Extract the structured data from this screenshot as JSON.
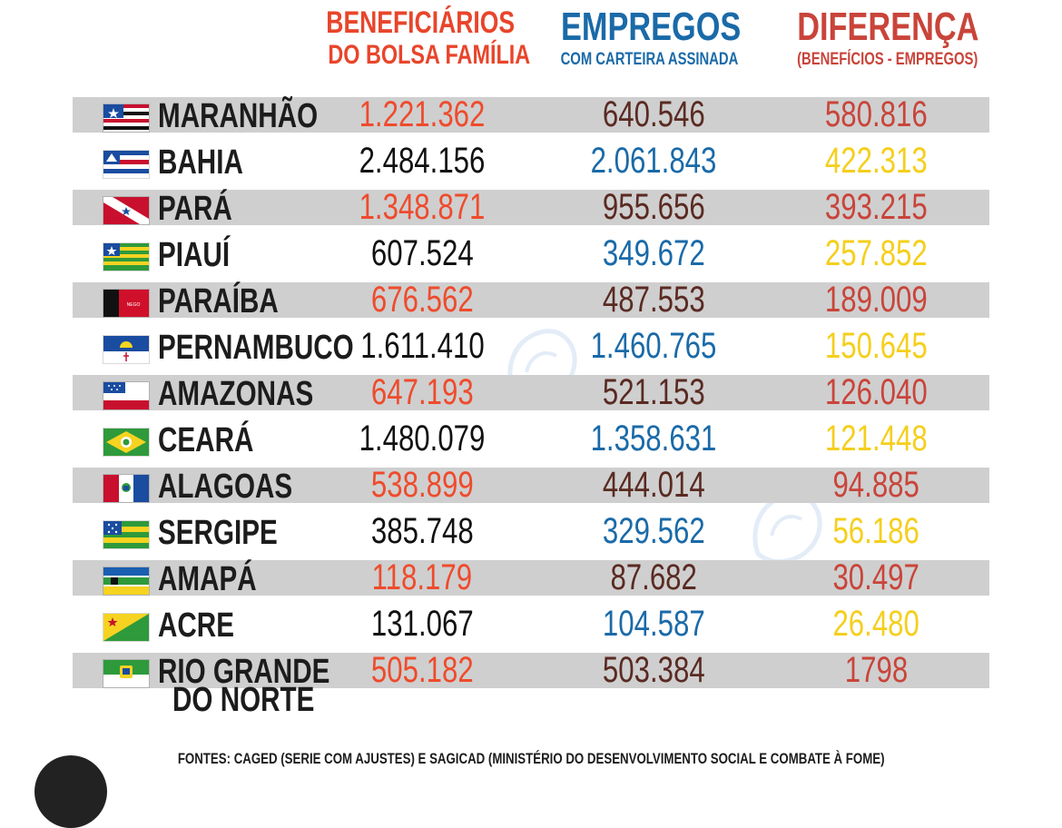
{
  "headers": {
    "beneficiarios_line1": "BENEFICIÁRIOS",
    "beneficiarios_line2": "DO BOLSA FAMÍLIA",
    "empregos_title": "EMPREGOS",
    "empregos_sub": "COM CARTEIRA ASSINADA",
    "diferenca_title": "DIFERENÇA",
    "diferenca_sub": "(BENEFÍCIOS - EMPREGOS)"
  },
  "colors": {
    "benef_header": "#e8452b",
    "empr_header": "#1a6aa8",
    "dif_header": "#c9443a",
    "benef_red": "#ef4b2c",
    "benef_black": "#111111",
    "empr_brown": "#5a2a22",
    "empr_blue": "#1a6aa8",
    "dif_red": "#c9443a",
    "dif_yellow": "#f5cf1d",
    "band_gray": "#cfcfcf"
  },
  "chart_data": {
    "type": "table",
    "columns": [
      "BENEFICIÁRIOS DO BOLSA FAMÍLIA",
      "EMPREGOS COM CARTEIRA ASSINADA",
      "DIFERENÇA (BENEFÍCIOS - EMPREGOS)"
    ],
    "rows": [
      {
        "state": "MARANHÃO",
        "flag": "maranhao-flag-icon",
        "beneficiarios": "1.221.362",
        "empregos": "640.546",
        "diferenca": "580.816",
        "banded": true
      },
      {
        "state": "BAHIA",
        "flag": "bahia-flag-icon",
        "beneficiarios": "2.484.156",
        "empregos": "2.061.843",
        "diferenca": "422.313",
        "banded": false
      },
      {
        "state": "PARÁ",
        "flag": "para-flag-icon",
        "beneficiarios": "1.348.871",
        "empregos": "955.656",
        "diferenca": "393.215",
        "banded": true
      },
      {
        "state": "PIAUÍ",
        "flag": "piaui-flag-icon",
        "beneficiarios": "607.524",
        "empregos": "349.672",
        "diferenca": "257.852",
        "banded": false
      },
      {
        "state": "PARAÍBA",
        "flag": "paraiba-flag-icon",
        "beneficiarios": "676.562",
        "empregos": "487.553",
        "diferenca": "189.009",
        "banded": true
      },
      {
        "state": "PERNAMBUCO",
        "flag": "pernambuco-flag-icon",
        "beneficiarios": "1.611.410",
        "empregos": "1.460.765",
        "diferenca": "150.645",
        "banded": false
      },
      {
        "state": "AMAZONAS",
        "flag": "amazonas-flag-icon",
        "beneficiarios": "647.193",
        "empregos": "521.153",
        "diferenca": "126.040",
        "banded": true
      },
      {
        "state": "CEARÁ",
        "flag": "ceara-flag-icon",
        "beneficiarios": "1.480.079",
        "empregos": "1.358.631",
        "diferenca": "121.448",
        "banded": false
      },
      {
        "state": "ALAGOAS",
        "flag": "alagoas-flag-icon",
        "beneficiarios": "538.899",
        "empregos": "444.014",
        "diferenca": "94.885",
        "banded": true
      },
      {
        "state": "SERGIPE",
        "flag": "sergipe-flag-icon",
        "beneficiarios": "385.748",
        "empregos": "329.562",
        "diferenca": "56.186",
        "banded": false
      },
      {
        "state": "AMAPÁ",
        "flag": "amapa-flag-icon",
        "beneficiarios": "118.179",
        "empregos": "87.682",
        "diferenca": "30.497",
        "banded": true
      },
      {
        "state": "ACRE",
        "flag": "acre-flag-icon",
        "beneficiarios": "131.067",
        "empregos": "104.587",
        "diferenca": "26.480",
        "banded": false
      },
      {
        "state": "RIO GRANDE",
        "flag": "rio-grande-do-norte-flag-icon",
        "beneficiarios": "505.182",
        "empregos": "503.384",
        "diferenca": "1798",
        "banded": true
      }
    ],
    "last_row_name_line2": "DO NORTE"
  },
  "footer": {
    "sources": "FONTES: CAGED (SERIE COM AJUSTES) E SAGICAD (MINISTÉRIO DO DESENVOLVIMENTO SOCIAL E COMBATE À FOME)"
  }
}
